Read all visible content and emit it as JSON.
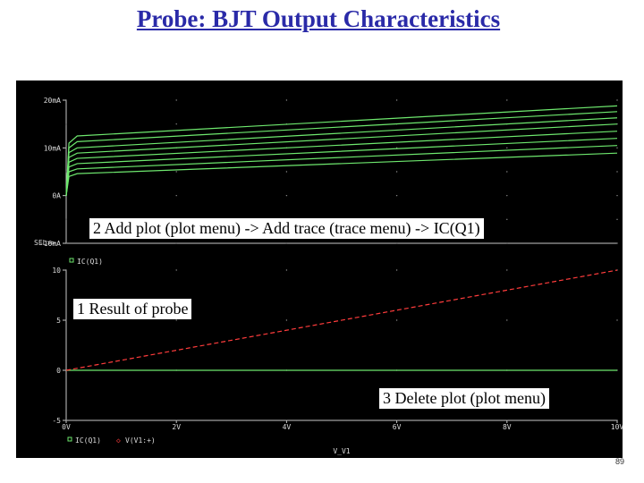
{
  "slide": {
    "title": "Probe: BJT Output Characteristics",
    "page_number": "89"
  },
  "annotations": {
    "step2": "2 Add plot (plot menu) -> Add trace (trace menu) -> IC(Q1)",
    "step1": "1 Result of probe",
    "step3": "3 Delete plot (plot menu)"
  },
  "colors": {
    "background": "#000000",
    "axis": "#c8c8c8",
    "text": "#dcdcdc",
    "green_trace": "#6ee86e",
    "red_trace": "#ff3c3c"
  },
  "chart_data": [
    {
      "type": "line",
      "y_tick_labels": [
        "20mA",
        "10mA",
        "0A",
        "-10mA"
      ],
      "ylim": [
        -10,
        20
      ],
      "xlim": [
        0,
        10
      ],
      "grid": true,
      "series": [
        {
          "x": [
            0,
            0.05,
            0.2,
            10
          ],
          "y": [
            0,
            4.0,
            4.6,
            8.9
          ]
        },
        {
          "x": [
            0,
            0.05,
            0.2,
            10
          ],
          "y": [
            0,
            5.0,
            5.6,
            10.5
          ]
        },
        {
          "x": [
            0,
            0.05,
            0.2,
            10
          ],
          "y": [
            0,
            6.0,
            6.7,
            12.0
          ]
        },
        {
          "x": [
            0,
            0.05,
            0.2,
            10
          ],
          "y": [
            0,
            7.0,
            7.8,
            13.5
          ]
        },
        {
          "x": [
            0,
            0.05,
            0.2,
            10
          ],
          "y": [
            0,
            8.0,
            8.9,
            15.0
          ]
        },
        {
          "x": [
            0,
            0.05,
            0.2,
            10
          ],
          "y": [
            0,
            9.0,
            10.0,
            16.3
          ]
        },
        {
          "x": [
            0,
            0.05,
            0.2,
            10
          ],
          "y": [
            0,
            10.0,
            11.3,
            17.6
          ]
        },
        {
          "x": [
            0,
            0.05,
            0.2,
            10
          ],
          "y": [
            0,
            11.0,
            12.5,
            18.8
          ]
        }
      ]
    },
    {
      "type": "line",
      "y_tick_labels": [
        "10",
        "5",
        "0",
        "-5"
      ],
      "x_tick_labels": [
        "0V",
        "2V",
        "4V",
        "6V",
        "8V",
        "10V"
      ],
      "xlabel": "V_V1",
      "sel_marker": "SEL>>",
      "top_legend": "IC(Q1)",
      "legend": [
        "IC(Q1)",
        "V(V1:+)"
      ],
      "ylim": [
        -5,
        10
      ],
      "xlim": [
        0,
        10
      ],
      "grid": true,
      "series": [
        {
          "name": "IC(Q1)",
          "x": [
            0,
            10
          ],
          "y": [
            0,
            0
          ]
        },
        {
          "name": "V(V1:+)",
          "x": [
            0,
            10
          ],
          "y": [
            0,
            10
          ]
        }
      ]
    }
  ]
}
